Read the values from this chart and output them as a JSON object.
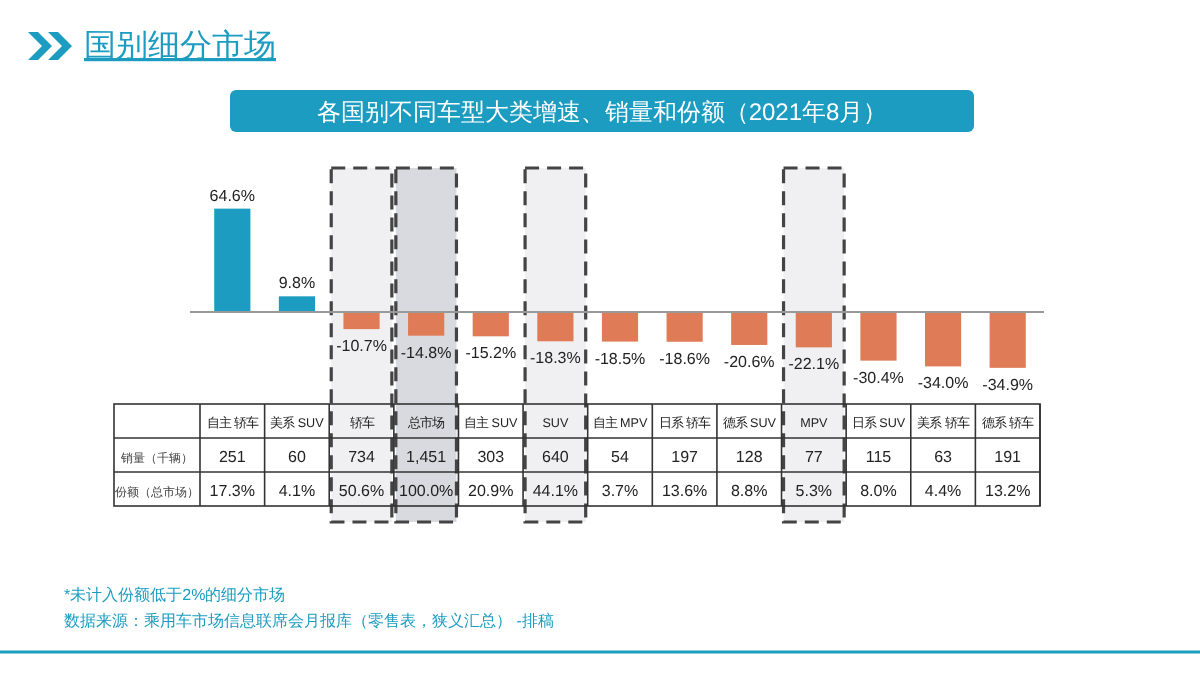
{
  "chart_data": {
    "type": "bar",
    "title": "国别细分市场",
    "subtitle": "各国别不同车型大类增速、销量和份额（2021年8月）",
    "categories": [
      "自主 轿车",
      "美系 SUV",
      "轿车",
      "总市场",
      "自主 SUV",
      "SUV",
      "自主 MPV",
      "日系 轿车",
      "德系 SUV",
      "MPV",
      "日系 SUV",
      "美系 轿车",
      "德系 轿车"
    ],
    "values": [
      64.6,
      9.8,
      -10.7,
      -14.8,
      -15.2,
      -18.3,
      -18.5,
      -18.6,
      -20.6,
      -22.1,
      -30.4,
      -34.0,
      -34.9
    ],
    "value_labels": [
      "64.6%",
      "9.8%",
      "-10.7%",
      "-14.8%",
      "-15.2%",
      "-18.3%",
      "-18.5%",
      "-18.6%",
      "-20.6%",
      "-22.1%",
      "-30.4%",
      "-34.0%",
      "-34.9%"
    ],
    "colors": [
      "#1b9cc0",
      "#1b9cc0",
      "#e07b57",
      "#e07b57",
      "#e07b57",
      "#e07b57",
      "#e07b57",
      "#e07b57",
      "#e07b57",
      "#e07b57",
      "#e07b57",
      "#e07b57",
      "#e07b57"
    ],
    "bands": [
      {
        "axis": "x",
        "from": "轿车",
        "to": "轿车",
        "color": "#f0f0f2"
      },
      {
        "axis": "x",
        "from": "总市场",
        "to": "总市场",
        "color": "#d9d9e0"
      },
      {
        "axis": "x",
        "from": "SUV",
        "to": "SUV",
        "color": "#f0f0f2"
      },
      {
        "axis": "x",
        "from": "MPV",
        "to": "MPV",
        "color": "#f0f0f2"
      }
    ],
    "annotations": [
      "销量（千辆）",
      "251",
      "60",
      "734",
      "1,451",
      "303",
      "640",
      "54",
      "197",
      "128",
      "77",
      "115",
      "63",
      "191",
      "份额（总市场）",
      "17.3%",
      "4.1%",
      "50.6%",
      "100.0%",
      "20.9%",
      "44.1%",
      "3.7%",
      "13.6%",
      "8.8%",
      "5.3%",
      "8.0%",
      "4.4%",
      "13.2%",
      "*未计入份额低于2%的细分市场",
      "数据来源：乘用车市场信息联席会月报库（零售表，狭义汇总） -排稿"
    ],
    "grid": false
  }
}
